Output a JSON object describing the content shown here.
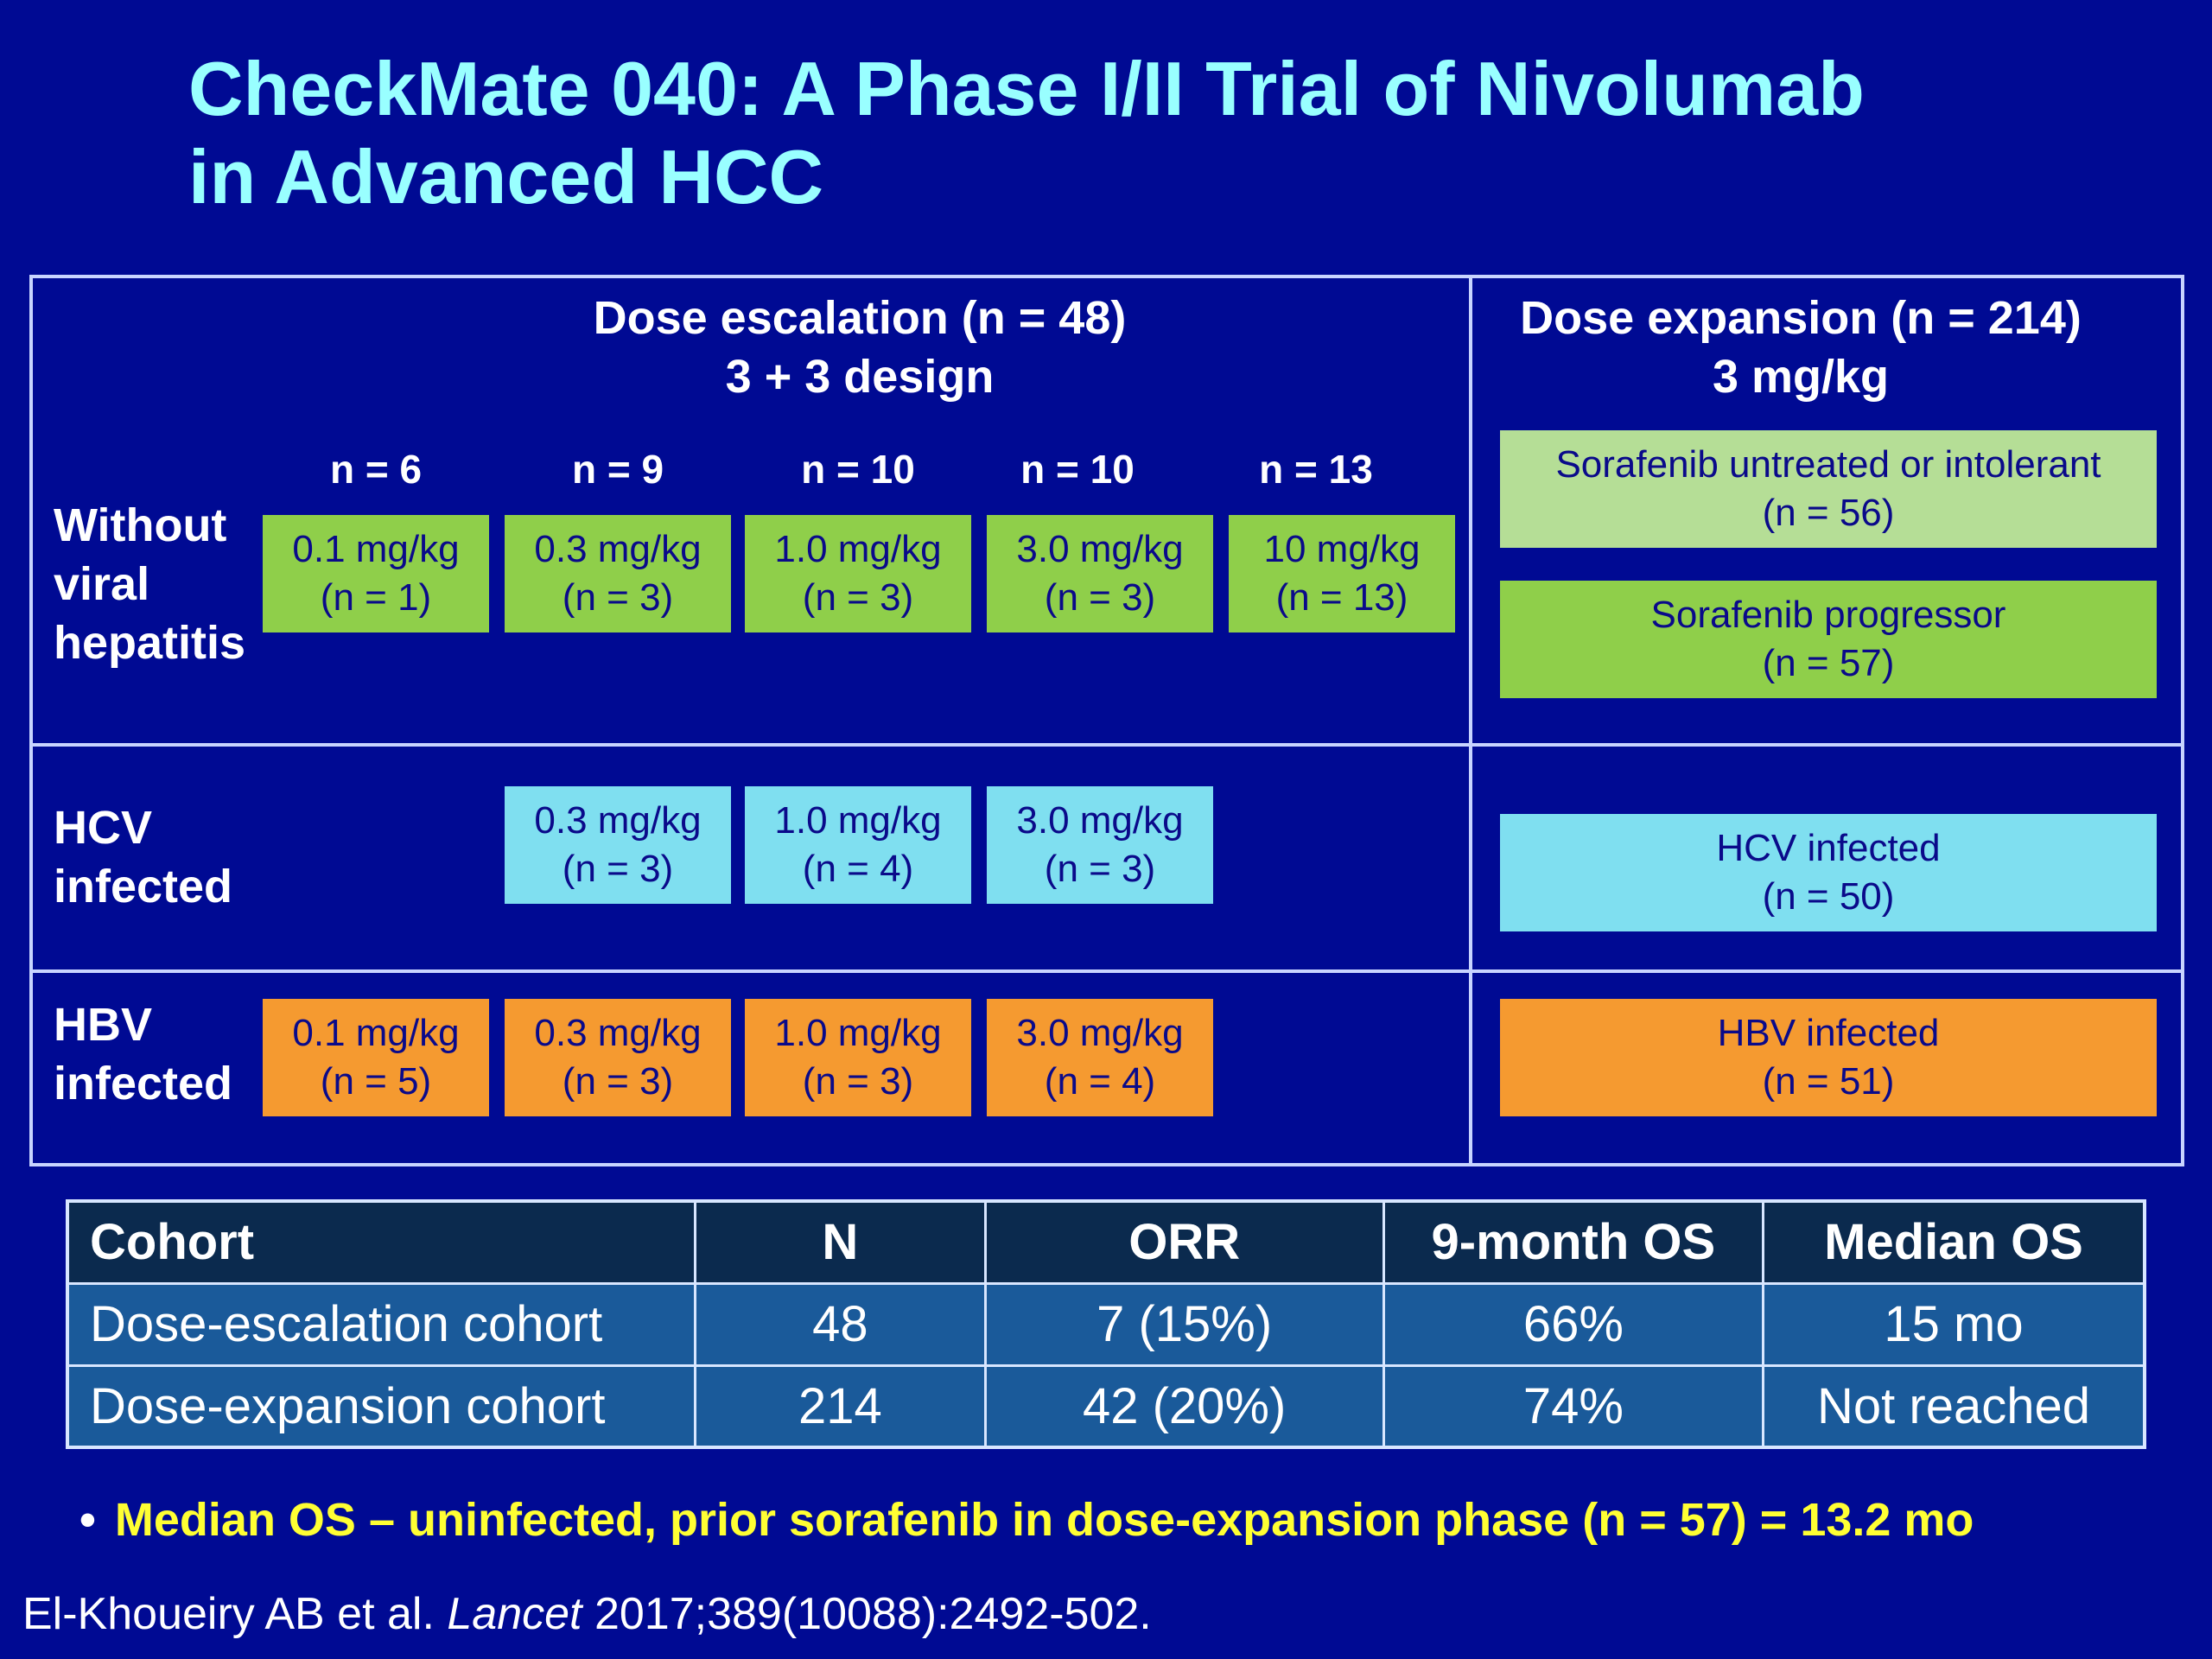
{
  "title": {
    "line1": "CheckMate 040: A Phase I/II Trial of Nivolumab",
    "line2": "in Advanced HCC"
  },
  "escalation": {
    "header1": "Dose escalation (n = 48)",
    "header2": "3 + 3 design",
    "columns": [
      "n = 6",
      "n = 9",
      "n = 10",
      "n = 10",
      "n = 13"
    ],
    "rows": {
      "without_viral": {
        "label": [
          "Without",
          "viral",
          "hepatitis"
        ],
        "cells": [
          {
            "dose": "0.1 mg/kg",
            "n": "(n = 1)"
          },
          {
            "dose": "0.3 mg/kg",
            "n": "(n = 3)"
          },
          {
            "dose": "1.0 mg/kg",
            "n": "(n = 3)"
          },
          {
            "dose": "3.0 mg/kg",
            "n": "(n = 3)"
          },
          {
            "dose": "10 mg/kg",
            "n": "(n = 13)"
          }
        ]
      },
      "hcv": {
        "label": [
          "HCV",
          "infected"
        ],
        "cells": [
          {
            "dose": "0.3 mg/kg",
            "n": "(n = 3)"
          },
          {
            "dose": "1.0 mg/kg",
            "n": "(n = 4)"
          },
          {
            "dose": "3.0 mg/kg",
            "n": "(n = 3)"
          }
        ]
      },
      "hbv": {
        "label": [
          "HBV",
          "infected"
        ],
        "cells": [
          {
            "dose": "0.1 mg/kg",
            "n": "(n = 5)"
          },
          {
            "dose": "0.3 mg/kg",
            "n": "(n = 3)"
          },
          {
            "dose": "1.0 mg/kg",
            "n": "(n = 3)"
          },
          {
            "dose": "3.0 mg/kg",
            "n": "(n = 4)"
          }
        ]
      }
    }
  },
  "expansion": {
    "header1": "Dose expansion (n = 214)",
    "header2": "3 mg/kg",
    "boxes": [
      {
        "line1": "Sorafenib untreated or intolerant",
        "line2": "(n = 56)"
      },
      {
        "line1": "Sorafenib progressor",
        "line2": "(n = 57)"
      },
      {
        "line1": "HCV infected",
        "line2": "(n = 50)"
      },
      {
        "line1": "HBV infected",
        "line2": "(n = 51)"
      }
    ]
  },
  "results_table": {
    "headers": [
      "Cohort",
      "N",
      "ORR",
      "9-month OS",
      "Median OS"
    ],
    "rows": [
      [
        "Dose-escalation cohort",
        "48",
        "7 (15%)",
        "66%",
        "15 mo"
      ],
      [
        "Dose-expansion cohort",
        "214",
        "42 (20%)",
        "74%",
        "Not reached"
      ]
    ]
  },
  "bullet": {
    "marker": "•",
    "text": "Median OS – uninfected, prior sorafenib in dose-expansion phase (n = 57) = 13.2 mo"
  },
  "citation": {
    "authors": "El-Khoueiry AB et al.",
    "journal": "Lancet",
    "ref": "2017;389(10088):2492-502."
  },
  "colors": {
    "background": "#000a93",
    "title": "#99ffff",
    "green": "#8fcf4a",
    "light_green": "#b5de96",
    "cyan": "#7fdff0",
    "orange": "#f59a30",
    "bullet_text": "#ffff33",
    "table_header": "#0b2a4e",
    "table_body": "#1a5a9a"
  }
}
